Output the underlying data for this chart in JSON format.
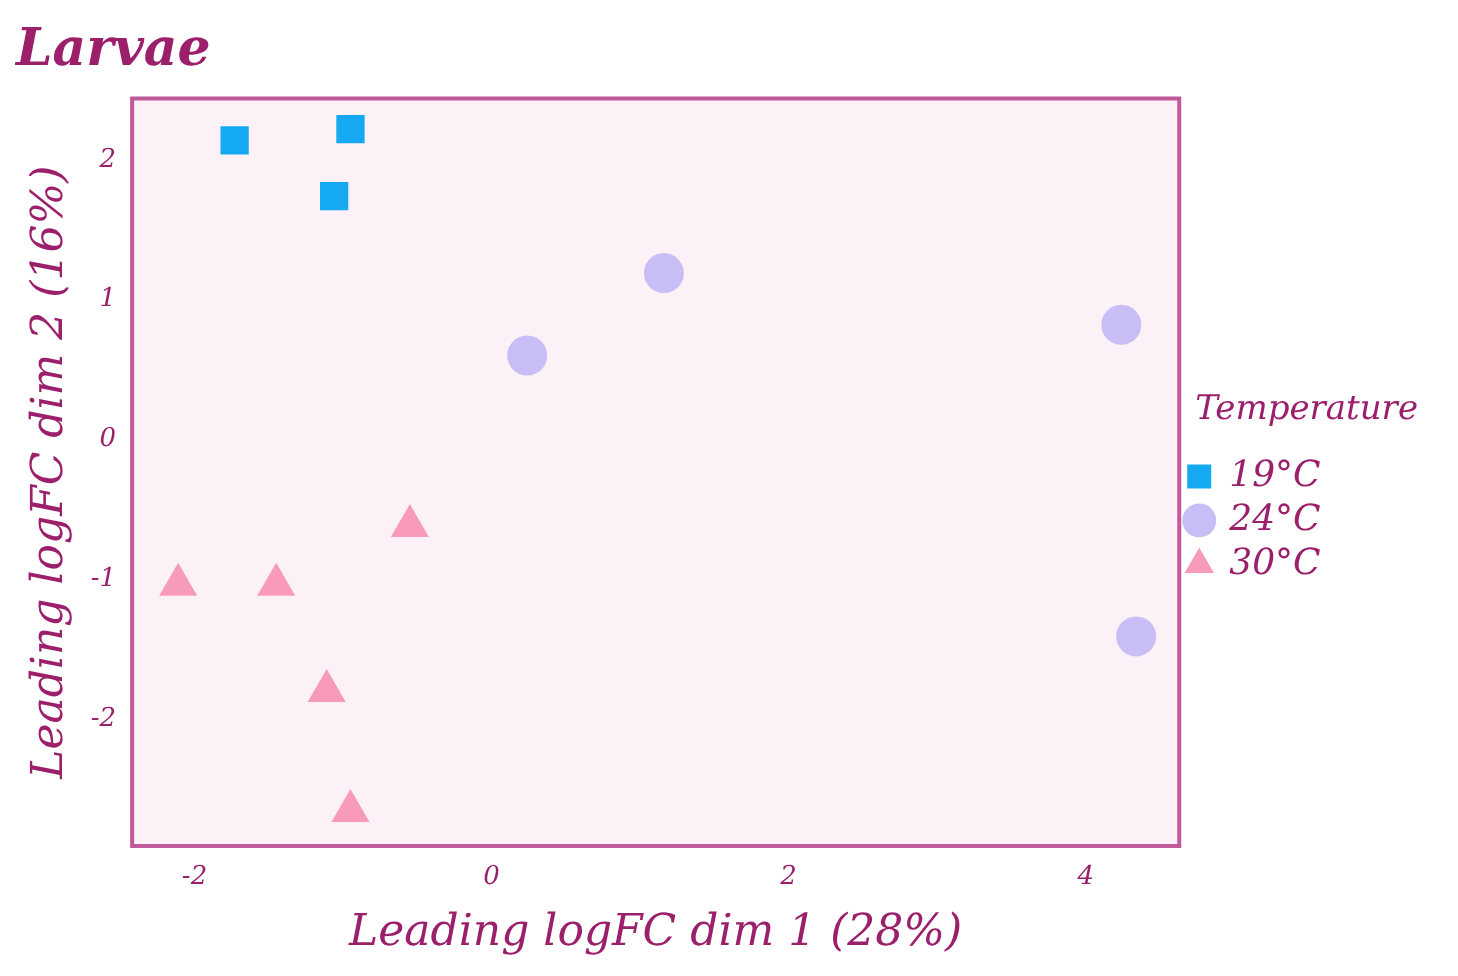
{
  "chart_data": {
    "type": "scatter",
    "title": "Larvae",
    "xlabel": "Leading logFC dim 1 (28%)",
    "ylabel": "Leading logFC dim 2 (16%)",
    "legend_title": "Temperature",
    "legend": "right",
    "grid": false,
    "xlim": [
      -2.42,
      4.63
    ],
    "ylim": [
      -2.91,
      2.44
    ],
    "xticks": [
      -2,
      0,
      2,
      4
    ],
    "yticks": [
      -2,
      -1,
      0,
      1,
      2
    ],
    "series": [
      {
        "name": "19°C",
        "color": "#14a9f0",
        "marker": "square",
        "x": [
          -1.73,
          -0.95,
          -1.06
        ],
        "values": [
          2.14,
          2.22,
          1.74
        ]
      },
      {
        "name": "24°C",
        "color": "#c8bef5",
        "marker": "circle",
        "x": [
          0.24,
          1.16,
          4.24,
          4.34
        ],
        "values": [
          0.6,
          1.19,
          0.82,
          -1.41
        ]
      },
      {
        "name": "30°C",
        "color": "#f79bb8",
        "marker": "triangle",
        "x": [
          -2.11,
          -1.45,
          -0.55,
          -1.11,
          -0.95
        ],
        "values": [
          -1.04,
          -1.04,
          -0.62,
          -1.8,
          -2.66
        ]
      }
    ]
  }
}
